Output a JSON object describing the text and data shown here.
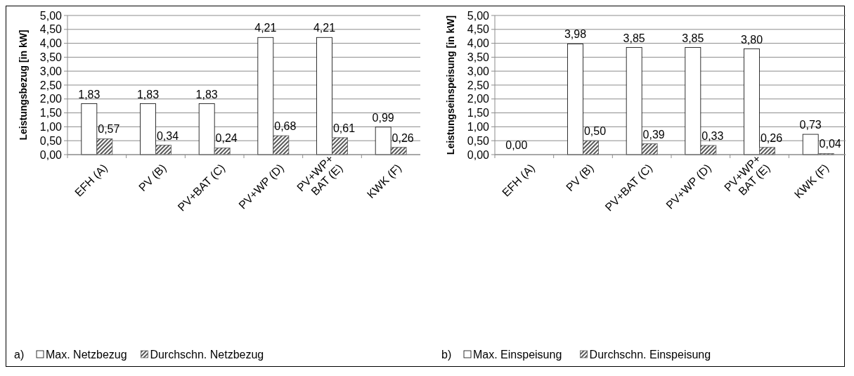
{
  "chart_data": [
    {
      "type": "bar",
      "ylabel": "Leistungsbezug [in kW]",
      "categories": [
        "EFH (A)",
        "PV (B)",
        "PV+BAT (C)",
        "PV+WP (D)",
        "PV+WP+ BAT (E)",
        "KWK (F)"
      ],
      "series": [
        {
          "name": "Max. Netzbezug",
          "color": "#ffffff",
          "values": [
            1.83,
            1.83,
            1.83,
            4.21,
            4.21,
            0.99
          ],
          "value_labels": [
            "1,83",
            "1,83",
            "1,83",
            "4,21",
            "4,21",
            "0,99"
          ]
        },
        {
          "name": "Durchschn. Netzbezug",
          "color": "#595959",
          "values": [
            0.57,
            0.34,
            0.24,
            0.68,
            0.61,
            0.26
          ],
          "value_labels": [
            "0,57",
            "0,34",
            "0,24",
            "0,68",
            "0,61",
            "0,26"
          ]
        }
      ],
      "ylim": [
        0,
        5
      ],
      "yticks": [
        {
          "value": 0,
          "label": "0,00"
        },
        {
          "value": 0.5,
          "label": "0,50"
        },
        {
          "value": 1,
          "label": "1,00"
        },
        {
          "value": 1.5,
          "label": "1,50"
        },
        {
          "value": 2,
          "label": "2,00"
        },
        {
          "value": 2.5,
          "label": "2,50"
        },
        {
          "value": 3,
          "label": "3,00"
        },
        {
          "value": 3.5,
          "label": "3,50"
        },
        {
          "value": 4,
          "label": "4,00"
        },
        {
          "value": 4.5,
          "label": "4,50"
        },
        {
          "value": 5,
          "label": "5,00"
        }
      ],
      "grid": "y",
      "legend": "bottom",
      "annotations": [
        "a)"
      ]
    },
    {
      "type": "bar",
      "ylabel": "Leistungseinspeisung [in kW]",
      "categories": [
        "EFH (A)",
        "PV (B)",
        "PV+BAT (C)",
        "PV+WP (D)",
        "PV+WP+ BAT (E)",
        "KWK (F)"
      ],
      "series": [
        {
          "name": "Max. Einspeisung",
          "color": "#ffffff",
          "values": [
            0,
            3.98,
            3.85,
            3.85,
            3.8,
            0.73
          ],
          "value_labels": [
            "0,00",
            "3,98",
            "3,85",
            "3,85",
            "3,80",
            "0,73"
          ]
        },
        {
          "name": "Durchschn. Einspeisung",
          "color": "#595959",
          "values": [
            0,
            0.5,
            0.39,
            0.33,
            0.26,
            0.04
          ],
          "value_labels": [
            null,
            "0,50",
            "0,39",
            "0,33",
            "0,26",
            "0,04"
          ]
        }
      ],
      "ylim": [
        0,
        5
      ],
      "yticks": [
        {
          "value": 0,
          "label": "0,00"
        },
        {
          "value": 0.5,
          "label": "0,50"
        },
        {
          "value": 1,
          "label": "1,00"
        },
        {
          "value": 1.5,
          "label": "1,50"
        },
        {
          "value": 2,
          "label": "2,00"
        },
        {
          "value": 2.5,
          "label": "2,50"
        },
        {
          "value": 3,
          "label": "3,00"
        },
        {
          "value": 3.5,
          "label": "3,50"
        },
        {
          "value": 4,
          "label": "4,00"
        },
        {
          "value": 4.5,
          "label": "4,50"
        },
        {
          "value": 5,
          "label": "5,00"
        }
      ],
      "grid": "y",
      "legend": "bottom",
      "annotations": [
        "b)"
      ]
    }
  ]
}
